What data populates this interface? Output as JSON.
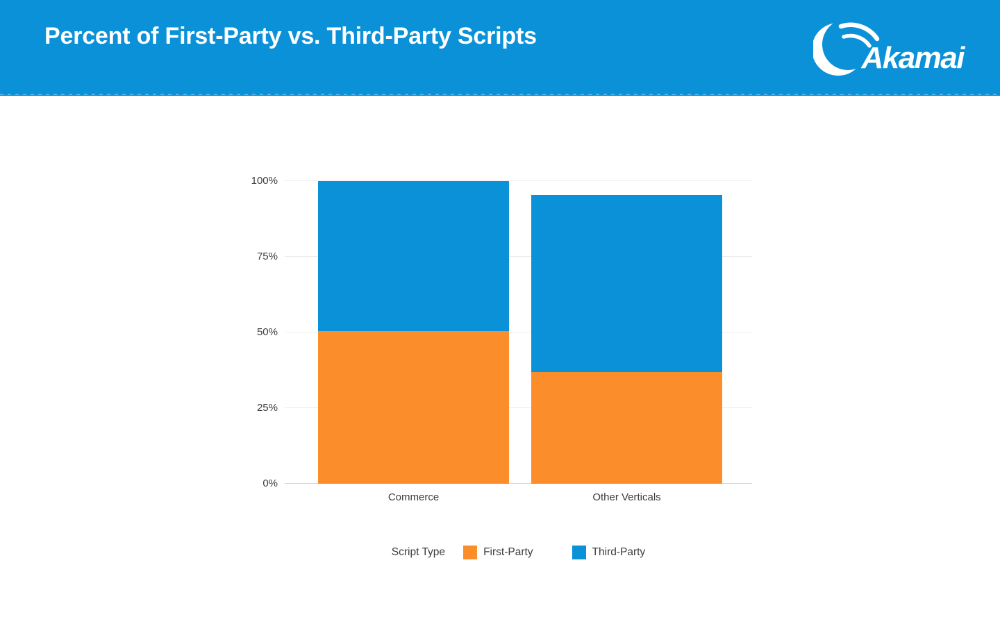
{
  "header": {
    "title": "Percent of First-Party vs. Third-Party Scripts",
    "logo_text": "Akamai",
    "background_color": "#0b91d8",
    "title_color": "#ffffff"
  },
  "chart_data": {
    "type": "bar",
    "stacked": true,
    "title": "Percent of First-Party vs. Third-Party Scripts",
    "categories": [
      "Commerce",
      "Other Verticals"
    ],
    "series": [
      {
        "name": "First-Party",
        "color": "#fb8d2a",
        "values": [
          50.5,
          37
        ]
      },
      {
        "name": "Third-Party",
        "color": "#0b91d8",
        "values": [
          49.5,
          58.5
        ]
      }
    ],
    "ylim": [
      0,
      100
    ],
    "yticks": [
      0,
      25,
      50,
      75,
      100
    ],
    "ytick_suffix": "%",
    "xlabel": "",
    "ylabel": "",
    "grid": true,
    "gridline_color": "#ececec",
    "axis_line_color": "#d5d5d5",
    "legend_title": "Script Type",
    "legend_position": "bottom"
  }
}
